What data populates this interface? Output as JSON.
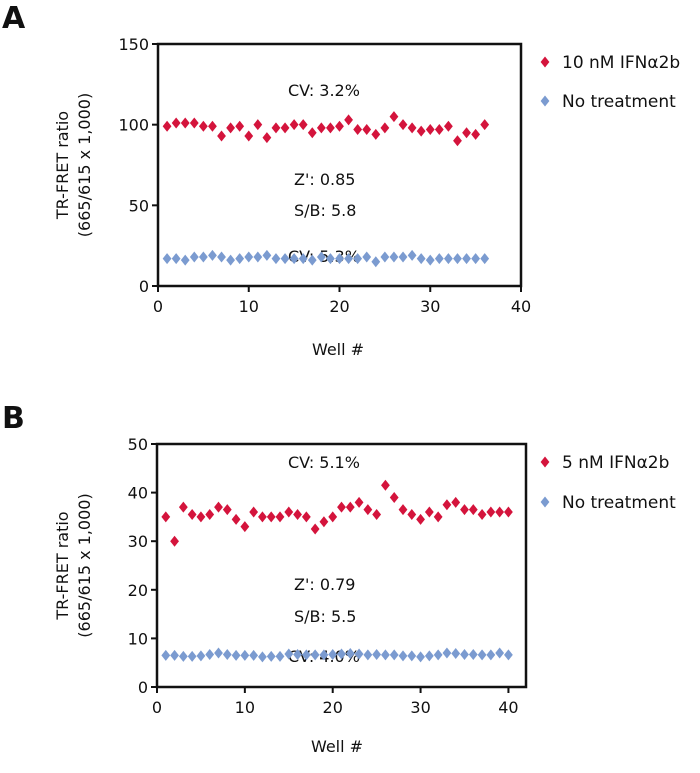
{
  "chart_data": [
    {
      "panel": "A",
      "type": "scatter",
      "xlabel": "Well #",
      "ylabel": [
        "TR-FRET ratio",
        "(665/615 x 1,000)"
      ],
      "xlim": [
        0,
        40
      ],
      "ylim": [
        0,
        150
      ],
      "xticks": [
        0,
        10,
        20,
        30,
        40
      ],
      "yticks": [
        0,
        50,
        100,
        150
      ],
      "grid": false,
      "legend_position": "right",
      "annotations": [
        "CV: 3.2%",
        "Z': 0.85",
        "S/B: 5.8",
        "CV: 5.3%"
      ],
      "series": [
        {
          "name": "10 nM IFNα2b",
          "color": "#d4143c",
          "marker": "diamond",
          "x": [
            1,
            2,
            3,
            4,
            5,
            6,
            7,
            8,
            9,
            10,
            11,
            12,
            13,
            14,
            15,
            16,
            17,
            18,
            19,
            20,
            21,
            22,
            23,
            24,
            25,
            26,
            27,
            28,
            29,
            30,
            31,
            32,
            33,
            34,
            35,
            36
          ],
          "y": [
            99,
            101,
            101,
            101,
            99,
            99,
            93,
            98,
            99,
            93,
            100,
            92,
            98,
            98,
            100,
            100,
            95,
            98,
            98,
            99,
            103,
            97,
            97,
            94,
            98,
            105,
            100,
            98,
            96,
            97,
            97,
            99,
            90,
            95,
            94,
            100
          ]
        },
        {
          "name": "No treatment",
          "color": "#7b9bd0",
          "marker": "diamond",
          "x": [
            1,
            2,
            3,
            4,
            5,
            6,
            7,
            8,
            9,
            10,
            11,
            12,
            13,
            14,
            15,
            16,
            17,
            18,
            19,
            20,
            21,
            22,
            23,
            24,
            25,
            26,
            27,
            28,
            29,
            30,
            31,
            32,
            33,
            34,
            35,
            36
          ],
          "y": [
            17,
            17,
            16,
            18,
            18,
            19,
            18,
            16,
            17,
            18,
            18,
            19,
            17,
            17,
            17,
            17,
            16,
            18,
            17,
            17,
            17,
            17,
            18,
            15,
            18,
            18,
            18,
            19,
            17,
            16,
            17,
            17,
            17,
            17,
            17,
            17
          ]
        }
      ]
    },
    {
      "panel": "B",
      "type": "scatter",
      "xlabel": "Well #",
      "ylabel": [
        "TR-FRET ratio",
        "(665/615 x 1,000)"
      ],
      "xlim": [
        0,
        42
      ],
      "ylim": [
        0,
        50
      ],
      "xticks": [
        0,
        10,
        20,
        30,
        40
      ],
      "yticks": [
        0,
        10,
        20,
        30,
        40,
        50
      ],
      "grid": false,
      "legend_position": "right",
      "annotations": [
        "CV: 5.1%",
        "Z': 0.79",
        "S/B: 5.5",
        "CV: 4.0%"
      ],
      "series": [
        {
          "name": "5 nM IFNα2b",
          "color": "#d4143c",
          "marker": "diamond",
          "x": [
            1,
            2,
            3,
            4,
            5,
            6,
            7,
            8,
            9,
            10,
            11,
            12,
            13,
            14,
            15,
            16,
            17,
            18,
            19,
            20,
            21,
            22,
            23,
            24,
            25,
            26,
            27,
            28,
            29,
            30,
            31,
            32,
            33,
            34,
            35,
            36,
            37,
            38,
            39,
            40
          ],
          "y": [
            35,
            30,
            37,
            35.5,
            35,
            35.5,
            37,
            36.5,
            34.5,
            33,
            36,
            35,
            35,
            35,
            36,
            35.5,
            35,
            32.5,
            34,
            35,
            37,
            37,
            38,
            36.5,
            35.5,
            41.5,
            39,
            36.5,
            35.5,
            34.5,
            36,
            35,
            37.5,
            38,
            36.5,
            36.5,
            35.5,
            36,
            36,
            36
          ]
        },
        {
          "name": "No treatment",
          "color": "#7b9bd0",
          "marker": "diamond",
          "x": [
            1,
            2,
            3,
            4,
            5,
            6,
            7,
            8,
            9,
            10,
            11,
            12,
            13,
            14,
            15,
            16,
            17,
            18,
            19,
            20,
            21,
            22,
            23,
            24,
            25,
            26,
            27,
            28,
            29,
            30,
            31,
            32,
            33,
            34,
            35,
            36,
            37,
            38,
            39,
            40
          ],
          "y": [
            6.5,
            6.5,
            6.3,
            6.3,
            6.4,
            6.7,
            7,
            6.7,
            6.5,
            6.5,
            6.5,
            6.2,
            6.3,
            6.3,
            6.8,
            6.7,
            6.6,
            6.6,
            6.6,
            6.7,
            6.8,
            6.9,
            6.8,
            6.6,
            6.7,
            6.6,
            6.6,
            6.4,
            6.4,
            6.2,
            6.4,
            6.6,
            7,
            6.9,
            6.7,
            6.7,
            6.6,
            6.6,
            7,
            6.6
          ]
        }
      ]
    }
  ]
}
